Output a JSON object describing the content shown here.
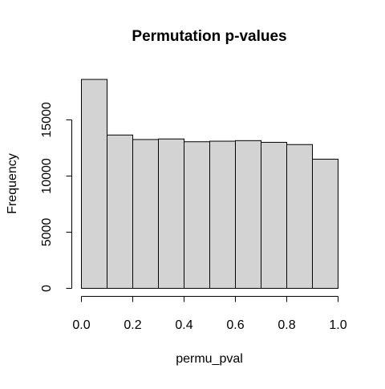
{
  "chart_data": {
    "type": "bar",
    "title": "Permutation p-values",
    "xlabel": "permu_pval",
    "ylabel": "Frequency",
    "bin_edges": [
      0.0,
      0.1,
      0.2,
      0.3,
      0.4,
      0.5,
      0.6,
      0.7,
      0.8,
      0.9,
      1.0
    ],
    "values": [
      18600,
      13650,
      13250,
      13300,
      13050,
      13100,
      13150,
      13000,
      12800,
      11500
    ],
    "xlim": [
      0,
      1
    ],
    "ylim": [
      0,
      18600
    ],
    "x_ticks": [
      0.0,
      0.2,
      0.4,
      0.6,
      0.8,
      1.0
    ],
    "x_tick_labels": [
      "0.0",
      "0.2",
      "0.4",
      "0.6",
      "0.8",
      "1.0"
    ],
    "y_ticks": [
      0,
      5000,
      10000,
      15000
    ],
    "y_tick_labels": [
      "0",
      "5000",
      "10000",
      "15000"
    ],
    "grid": false,
    "bar_fill": "#d3d3d3",
    "bar_stroke": "#000000"
  }
}
